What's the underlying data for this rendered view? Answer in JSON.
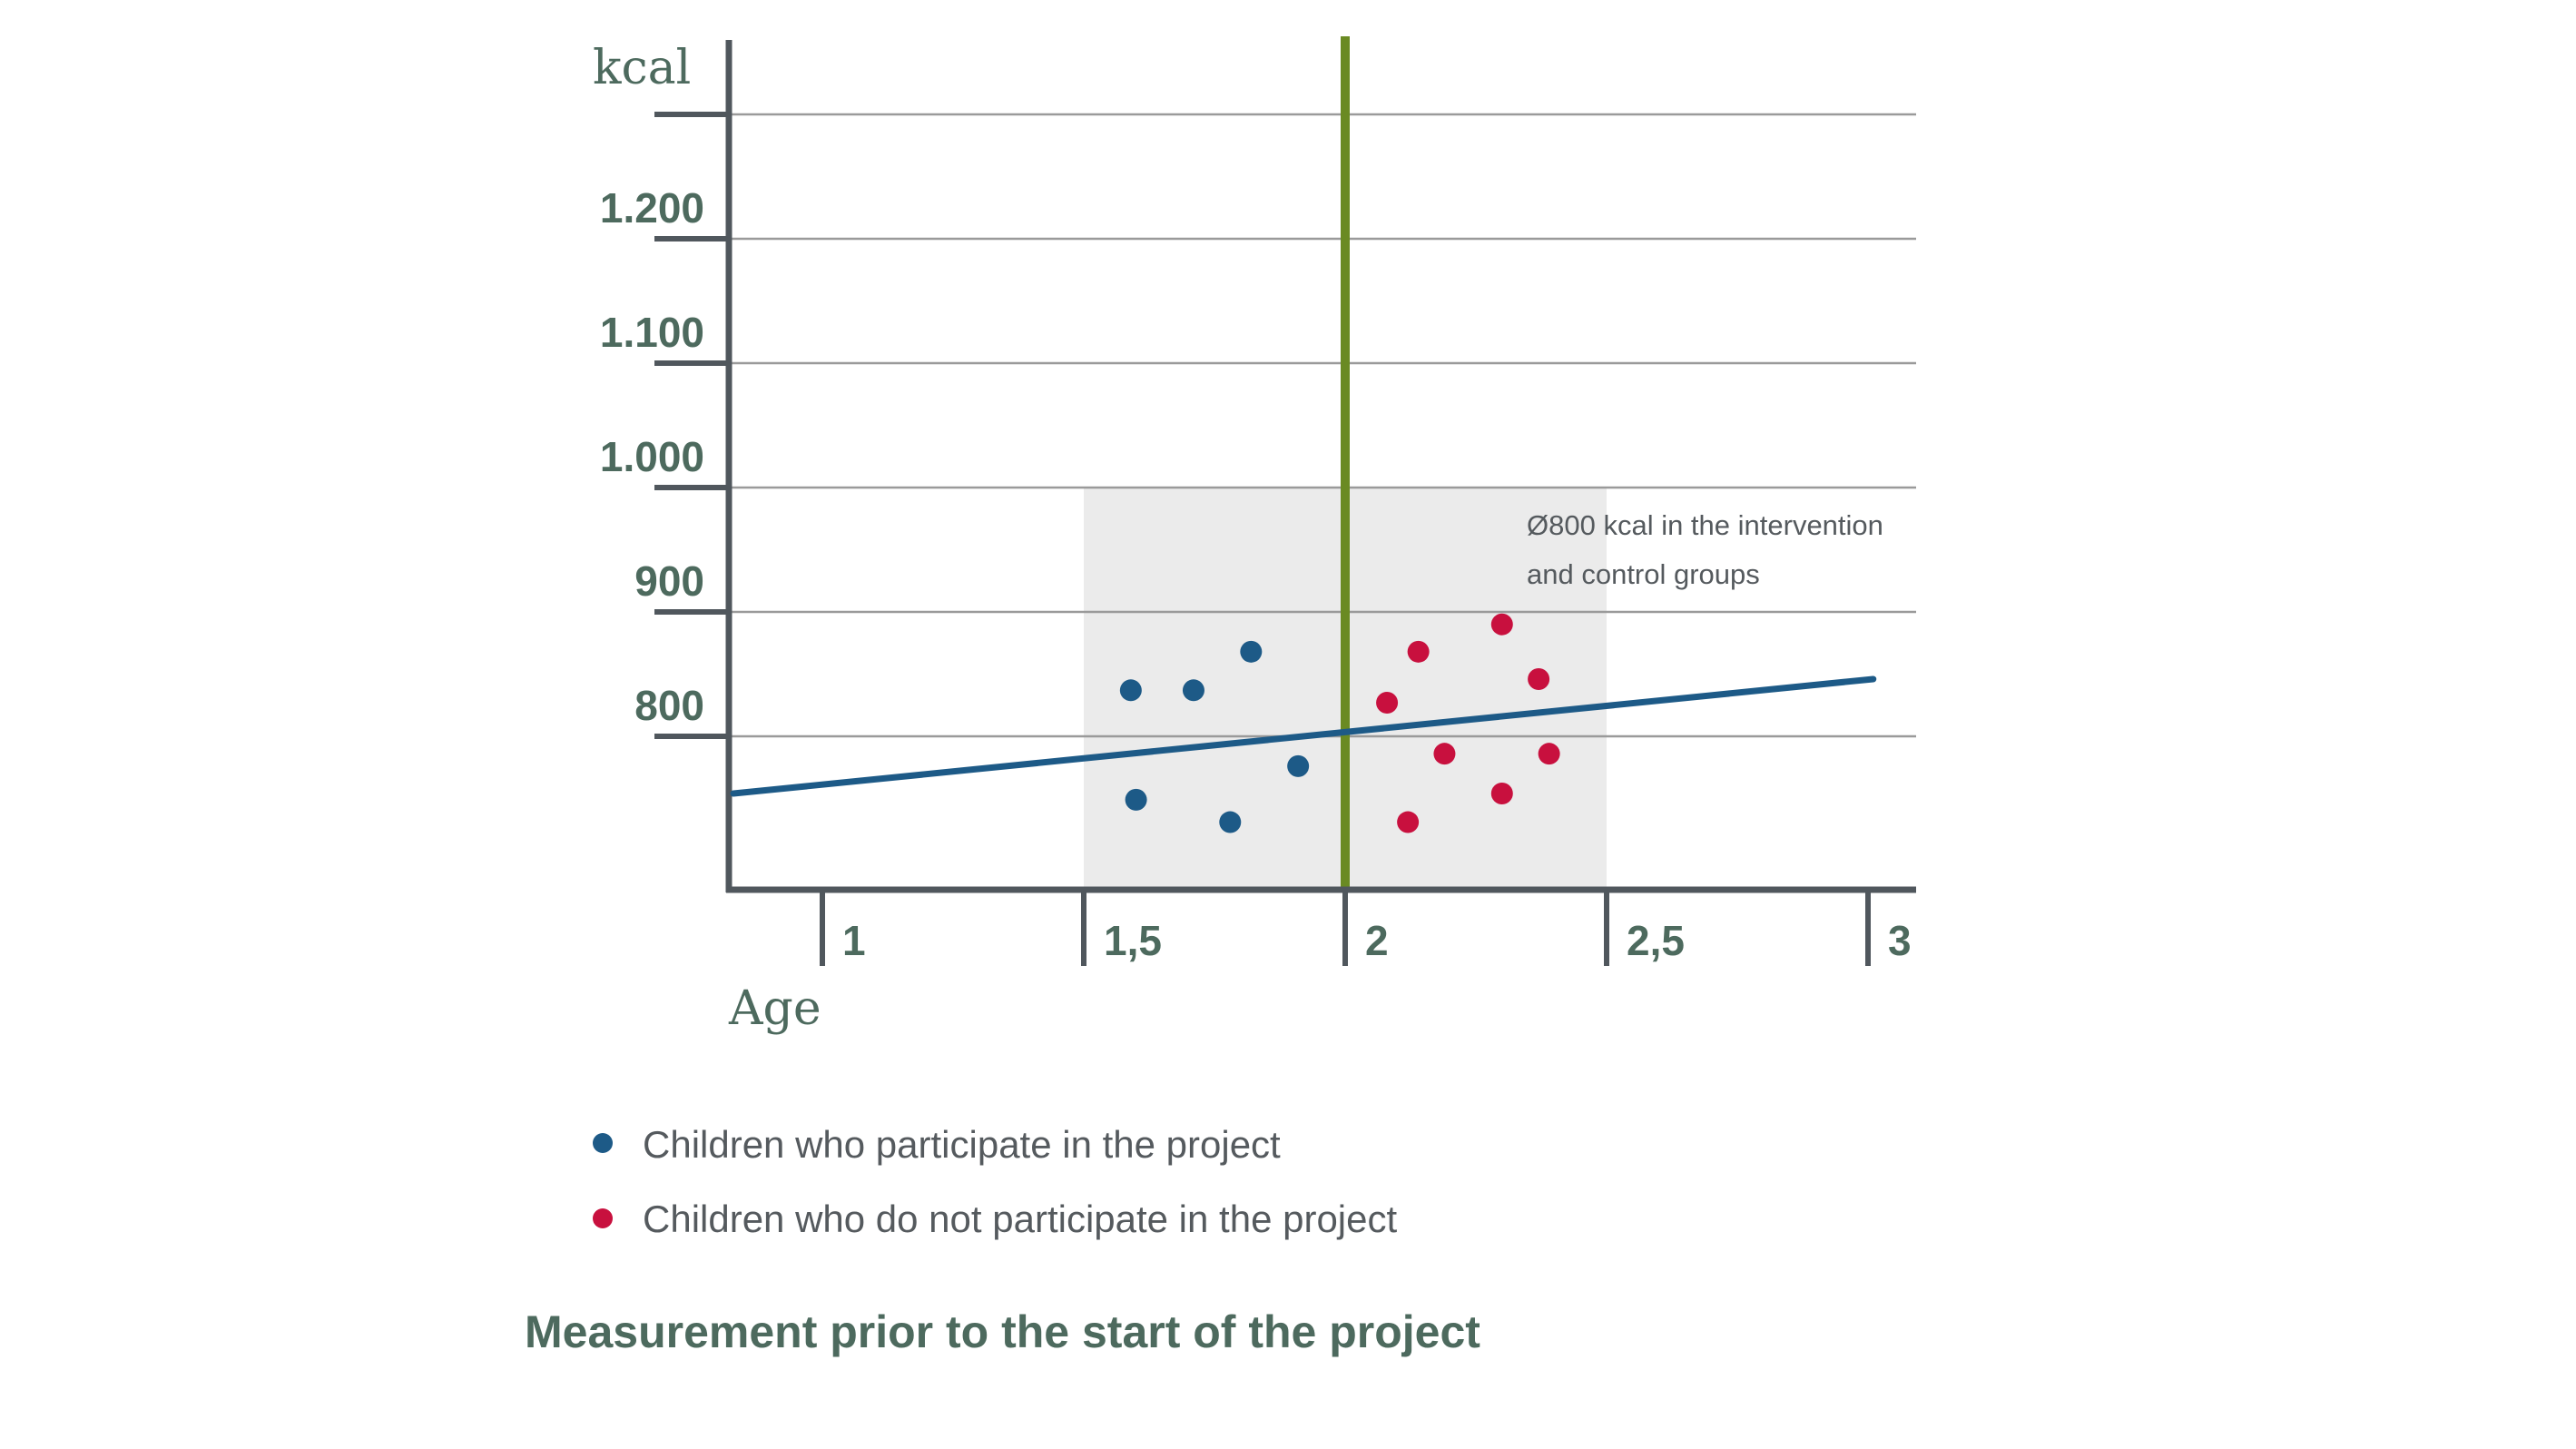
{
  "chart_data": {
    "type": "scatter",
    "title": "Measurement prior to the start of the project",
    "xlabel": "Age",
    "ylabel": "kcal",
    "xlim": [
      0.82,
      3.05
    ],
    "ylim": [
      678,
      1300
    ],
    "x_ticks": [
      {
        "value": 1,
        "label": "1"
      },
      {
        "value": 1.5,
        "label": "1,5"
      },
      {
        "value": 2,
        "label": "2"
      },
      {
        "value": 2.5,
        "label": "2,5"
      },
      {
        "value": 3,
        "label": "3"
      }
    ],
    "y_ticks": [
      {
        "value": 800,
        "label": "800"
      },
      {
        "value": 900,
        "label": "900"
      },
      {
        "value": 1000,
        "label": "1.000"
      },
      {
        "value": 1100,
        "label": "1.100"
      },
      {
        "value": 1200,
        "label": "1.200"
      },
      {
        "value": 1300,
        "label": ""
      }
    ],
    "grid": true,
    "series": [
      {
        "name": "Children who participate in the project",
        "color": "#1d5a87",
        "points": [
          {
            "x": 1.59,
            "y": 837
          },
          {
            "x": 1.71,
            "y": 837
          },
          {
            "x": 1.82,
            "y": 868
          },
          {
            "x": 1.6,
            "y": 749
          },
          {
            "x": 1.78,
            "y": 731
          },
          {
            "x": 1.91,
            "y": 776
          }
        ]
      },
      {
        "name": "Children who do not participate in the project",
        "color": "#c8103e",
        "points": [
          {
            "x": 2.08,
            "y": 827
          },
          {
            "x": 2.14,
            "y": 868
          },
          {
            "x": 2.3,
            "y": 890
          },
          {
            "x": 2.37,
            "y": 846
          },
          {
            "x": 2.19,
            "y": 786
          },
          {
            "x": 2.39,
            "y": 786
          },
          {
            "x": 2.3,
            "y": 754
          },
          {
            "x": 2.12,
            "y": 731
          }
        ]
      }
    ],
    "trend_line": {
      "color": "#1d5a87",
      "points": [
        {
          "x": 0.83,
          "y": 754
        },
        {
          "x": 3.01,
          "y": 846
        }
      ]
    },
    "highlight_region": {
      "x": [
        1.5,
        2.5
      ],
      "y": [
        678,
        1000
      ],
      "color": "#ebebeb"
    },
    "vertical_line": {
      "x": 2,
      "color": "#6a8a23"
    },
    "annotation": {
      "lines": [
        "Ø800 kcal in the intervention",
        "and control groups"
      ]
    },
    "legend_position": "bottom"
  }
}
